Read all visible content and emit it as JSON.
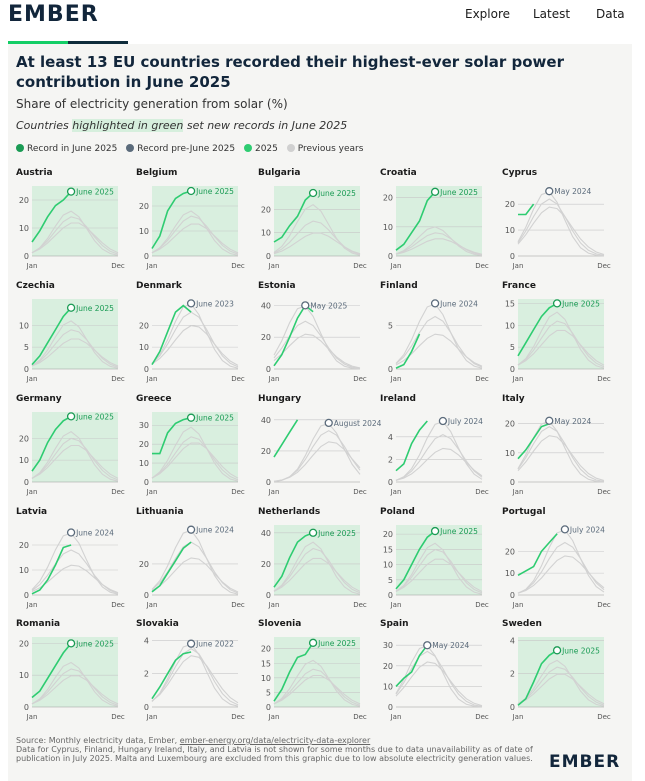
{
  "header": {
    "logo": "EMBER",
    "nav": [
      "Explore",
      "Latest",
      "Data"
    ]
  },
  "main": {
    "title": "At least 13 EU countries recorded their highest-ever solar power contribution in June 2025",
    "subtitle": "Share of electricity generation from solar (%)",
    "note_prefix": "Countries ",
    "note_highlight": "highlighted in green",
    "note_suffix": " set new records in June 2025"
  },
  "legend": [
    {
      "label": "Record in June 2025",
      "color": "#1a9b54"
    },
    {
      "label": "Record pre-June 2025",
      "color": "#5b6b7b"
    },
    {
      "label": "2025",
      "color": "#2ecc71"
    },
    {
      "label": "Previous years",
      "color": "#d0d0d0"
    }
  ],
  "footer": {
    "source_prefix": "Source: Monthly electricity data, Ember, ",
    "source_link": "ember-energy.org/data/electricity-data-explorer",
    "note": "Data for Cyprus, Finland, Hungary Ireland, Italy, and Latvia is not shown for some months due to data unavailability as of date of publication in July 2025. Malta and Luxembourg are excluded from this graphic due to low absolute electricity generation values.",
    "logo": "EMBER"
  },
  "colors": {
    "record_2025_bg": "#d9efdf",
    "line_2025": "#2ecc71",
    "marker_2025": "#1a9b54",
    "marker_pre": "#5b6b7b",
    "previous": "#d2d2d2"
  },
  "chart_data": {
    "type": "line",
    "x_start_label": "Jan",
    "x_end_label": "Dec",
    "charts": [
      {
        "country": "Austria",
        "record_2025": true,
        "record_label": "June 2025",
        "record_month": 6,
        "ymax": 25,
        "yticks": [
          0,
          10,
          20
        ],
        "values_2025": [
          5,
          9,
          14,
          18,
          20,
          23
        ],
        "previous_peak": [
          16,
          14,
          12
        ]
      },
      {
        "country": "Belgium",
        "record_2025": true,
        "record_label": "June 2025",
        "record_month": 6,
        "ymax": 28,
        "yticks": [
          0,
          10,
          20
        ],
        "values_2025": [
          3,
          8,
          18,
          23,
          25,
          26
        ],
        "previous_peak": [
          18,
          16,
          13
        ]
      },
      {
        "country": "Bulgaria",
        "record_2025": true,
        "record_label": "June 2025",
        "record_month": 6,
        "ymax": 30,
        "yticks": [
          0,
          10,
          20
        ],
        "values_2025": [
          6,
          8,
          13,
          17,
          24,
          27
        ],
        "previous_peak": [
          22,
          15,
          10
        ]
      },
      {
        "country": "Croatia",
        "record_2025": true,
        "record_label": "June 2025",
        "record_month": 6,
        "ymax": 24,
        "yticks": [
          0,
          10,
          20
        ],
        "values_2025": [
          2,
          4,
          8,
          12,
          19,
          22
        ],
        "previous_peak": [
          10,
          8,
          6
        ]
      },
      {
        "country": "Cyprus",
        "record_2025": false,
        "record_label": "May 2024",
        "record_month": 5,
        "ymax": 27,
        "yticks": [
          0,
          10,
          20
        ],
        "values_2025": [
          16,
          16,
          20
        ],
        "previous_peak": [
          25,
          22,
          19
        ]
      },
      {
        "country": "Czechia",
        "record_2025": true,
        "record_label": "June 2025",
        "record_month": 6,
        "ymax": 16,
        "yticks": [
          0,
          5,
          10
        ],
        "values_2025": [
          1,
          3,
          6,
          9,
          12,
          14
        ],
        "previous_peak": [
          11,
          9,
          7
        ]
      },
      {
        "country": "Denmark",
        "record_2025": false,
        "record_label": "June 2023",
        "record_month": 6,
        "ymax": 32,
        "yticks": [
          0,
          10,
          20
        ],
        "values_2025": [
          2,
          8,
          17,
          26,
          29,
          26
        ],
        "previous_peak": [
          30,
          26,
          20
        ]
      },
      {
        "country": "Estonia",
        "record_2025": false,
        "record_label": "May 2025",
        "record_month": 5,
        "ymax": 44,
        "yticks": [
          0,
          20,
          40
        ],
        "values_2025": [
          2,
          9,
          20,
          32,
          40,
          36
        ],
        "previous_peak": [
          40,
          30,
          22
        ]
      },
      {
        "country": "Finland",
        "record_2025": false,
        "record_label": "June 2024",
        "record_month": 6,
        "ymax": 8,
        "yticks": [
          0,
          5
        ],
        "values_2025": [
          0.1,
          0.5,
          2,
          4
        ],
        "previous_peak": [
          7.5,
          6,
          4
        ]
      },
      {
        "country": "France",
        "record_2025": true,
        "record_label": "June 2025",
        "record_month": 6,
        "ymax": 16,
        "yticks": [
          0,
          5,
          10,
          15
        ],
        "values_2025": [
          3,
          6,
          9,
          12,
          14,
          15
        ],
        "previous_peak": [
          13,
          11,
          9
        ]
      },
      {
        "country": "Germany",
        "record_2025": true,
        "record_label": "June 2025",
        "record_month": 6,
        "ymax": 32,
        "yticks": [
          0,
          10,
          20
        ],
        "values_2025": [
          5,
          10,
          18,
          24,
          28,
          30
        ],
        "previous_peak": [
          23,
          20,
          17
        ]
      },
      {
        "country": "Greece",
        "record_2025": true,
        "record_label": "June 2025",
        "record_month": 6,
        "ymax": 37,
        "yticks": [
          0,
          10,
          20,
          30
        ],
        "values_2025": [
          15,
          15,
          26,
          31,
          33,
          34
        ],
        "previous_peak": [
          29,
          24,
          21
        ]
      },
      {
        "country": "Hungary",
        "record_2025": false,
        "record_label": "August 2024",
        "record_month": 8,
        "ymax": 45,
        "yticks": [
          0,
          20,
          40
        ],
        "values_2025": [
          16,
          24,
          32,
          40
        ],
        "previous_peak": [
          38,
          33,
          26
        ]
      },
      {
        "country": "Ireland",
        "record_2025": false,
        "record_label": "July 2024",
        "record_month": 7,
        "ymax": 6.2,
        "yticks": [
          0,
          2,
          4
        ],
        "values_2025": [
          1,
          1.6,
          3.4,
          4.6,
          5.4
        ],
        "previous_peak": [
          5.4,
          4.2,
          3
        ]
      },
      {
        "country": "Italy",
        "record_2025": false,
        "record_label": "May 2024",
        "record_month": 5,
        "ymax": 24,
        "yticks": [
          0,
          10,
          20
        ],
        "values_2025": [
          8,
          11,
          15,
          19,
          20
        ],
        "previous_peak": [
          21,
          19,
          16
        ]
      },
      {
        "country": "Latvia",
        "record_2025": false,
        "record_label": "June 2024",
        "record_month": 6,
        "ymax": 28,
        "yticks": [
          0,
          10,
          20
        ],
        "values_2025": [
          0.5,
          2,
          6,
          12,
          19,
          20
        ],
        "previous_peak": [
          25,
          18,
          12
        ]
      },
      {
        "country": "Lithuania",
        "record_2025": false,
        "record_label": "June 2024",
        "record_month": 6,
        "ymax": 45,
        "yticks": [
          0,
          20
        ],
        "values_2025": [
          2,
          6,
          14,
          22,
          30,
          34
        ],
        "previous_peak": [
          42,
          34,
          24
        ]
      },
      {
        "country": "Netherlands",
        "record_2025": true,
        "record_label": "June 2025",
        "record_month": 6,
        "ymax": 45,
        "yticks": [
          0,
          20,
          40
        ],
        "values_2025": [
          5,
          12,
          24,
          34,
          38,
          40
        ],
        "previous_peak": [
          34,
          30,
          24
        ]
      },
      {
        "country": "Poland",
        "record_2025": true,
        "record_label": "June 2025",
        "record_month": 6,
        "ymax": 23,
        "yticks": [
          0,
          5,
          10,
          15,
          20
        ],
        "values_2025": [
          2,
          5,
          10,
          15,
          19,
          21
        ],
        "previous_peak": [
          17,
          15,
          12
        ]
      },
      {
        "country": "Portugal",
        "record_2025": false,
        "record_label": "July 2024",
        "record_month": 7,
        "ymax": 32,
        "yticks": [
          0,
          10,
          20
        ],
        "values_2025": [
          9,
          11,
          13,
          20,
          24,
          28
        ],
        "previous_peak": [
          30,
          24,
          18
        ]
      },
      {
        "country": "Romania",
        "record_2025": true,
        "record_label": "June 2025",
        "record_month": 6,
        "ymax": 22,
        "yticks": [
          0,
          10,
          20
        ],
        "values_2025": [
          3,
          5,
          9,
          13,
          17,
          20
        ],
        "previous_peak": [
          14,
          12,
          10
        ]
      },
      {
        "country": "Slovakia",
        "record_2025": false,
        "record_label": "June 2022",
        "record_month": 6,
        "ymax": 4.2,
        "yticks": [
          0,
          2,
          4
        ],
        "values_2025": [
          0.5,
          1.2,
          2,
          2.8,
          3.2,
          3.3
        ],
        "previous_peak": [
          3.8,
          3.5,
          3.1
        ]
      },
      {
        "country": "Slovenia",
        "record_2025": true,
        "record_label": "June 2025",
        "record_month": 6,
        "ymax": 24,
        "yticks": [
          0,
          5,
          10,
          15,
          20
        ],
        "values_2025": [
          2,
          6,
          12,
          17,
          18,
          22
        ],
        "previous_peak": [
          16,
          13,
          11
        ]
      },
      {
        "country": "Spain",
        "record_2025": false,
        "record_label": "May 2024",
        "record_month": 5,
        "ymax": 34,
        "yticks": [
          0,
          10,
          20,
          30
        ],
        "values_2025": [
          10,
          14,
          17,
          25,
          30
        ],
        "previous_peak": [
          30,
          27,
          22
        ]
      },
      {
        "country": "Sweden",
        "record_2025": true,
        "record_label": "June 2025",
        "record_month": 6,
        "ymax": 4.2,
        "yticks": [
          0,
          2,
          4
        ],
        "values_2025": [
          0.1,
          0.5,
          1.5,
          2.6,
          3.1,
          3.4
        ],
        "previous_peak": [
          2.8,
          2.4,
          2
        ]
      }
    ]
  }
}
